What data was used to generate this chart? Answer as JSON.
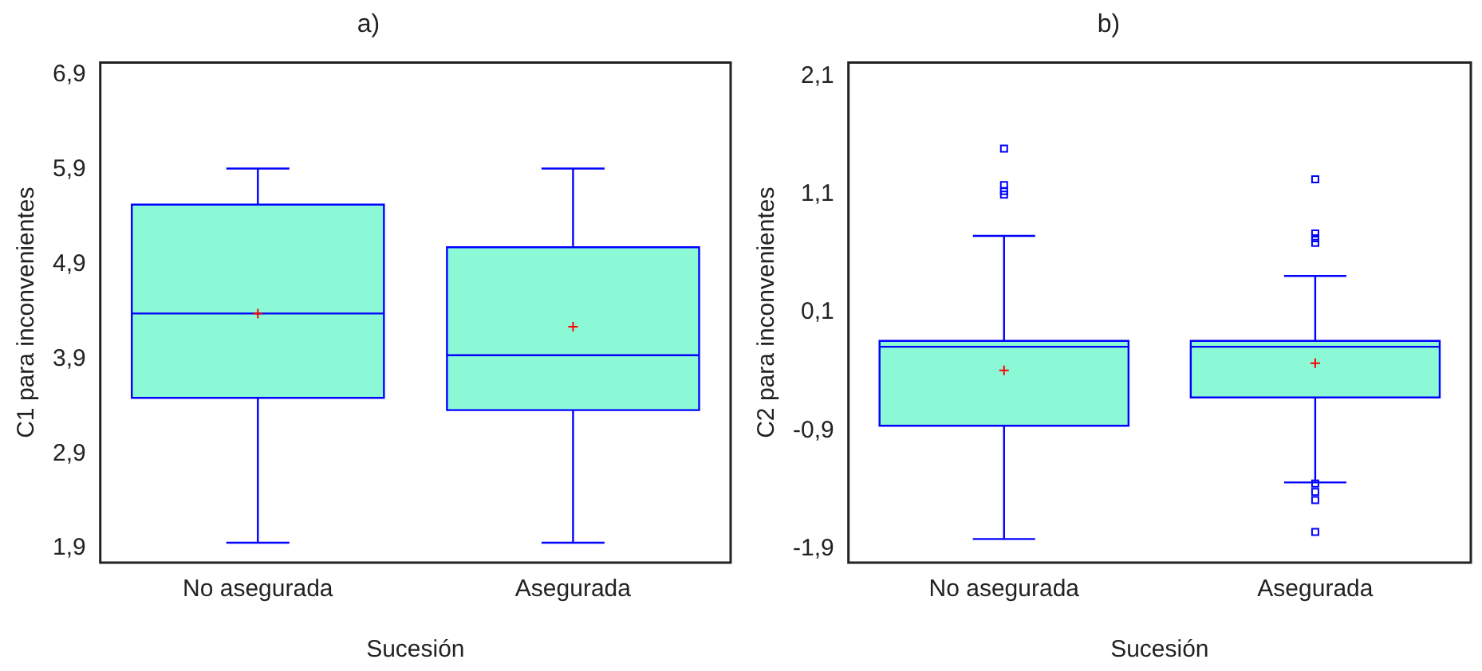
{
  "chart_data": [
    {
      "type": "box",
      "title": "a)",
      "xlabel": "Sucesión",
      "ylabel": "C1 para inconvenientes",
      "categories": [
        "No asegurada",
        "Asegurada"
      ],
      "color": "#8cf9d6",
      "ylim": [
        1.75,
        7.03
      ],
      "yticks": [
        {
          "value": 1.9,
          "label": "1,9"
        },
        {
          "value": 2.9,
          "label": "2,9"
        },
        {
          "value": 3.9,
          "label": "3,9"
        },
        {
          "value": 4.9,
          "label": "4,9"
        },
        {
          "value": 5.9,
          "label": "5,9"
        },
        {
          "value": 6.9,
          "label": "6,9"
        }
      ],
      "grid": false,
      "boxes": [
        {
          "low": 1.96,
          "q1": 3.49,
          "median": 4.38,
          "q3": 5.53,
          "high": 5.91,
          "mean": 4.38
        },
        {
          "low": 1.96,
          "q1": 3.36,
          "median": 3.94,
          "q3": 5.08,
          "high": 5.91,
          "mean": 4.24
        }
      ]
    },
    {
      "type": "box",
      "title": "b)",
      "xlabel": "Sucesión",
      "ylabel": "C2 para inconvenientes",
      "categories": [
        "No asegurada",
        "Asegurada"
      ],
      "color": "#8cf9d6",
      "ylim": [
        -2.02,
        2.22
      ],
      "yticks": [
        {
          "value": -1.9,
          "label": "-1,9"
        },
        {
          "value": -0.9,
          "label": "-0,9"
        },
        {
          "value": 0.1,
          "label": "0,1"
        },
        {
          "value": 1.1,
          "label": "1,1"
        },
        {
          "value": 2.1,
          "label": "2,1"
        }
      ],
      "grid": false,
      "boxes": [
        {
          "low": -1.82,
          "q1": -0.86,
          "median": -0.19,
          "q3": -0.14,
          "high": 0.75,
          "mean": -0.39,
          "outliers": [
            1.49,
            1.18,
            1.13,
            1.1
          ]
        },
        {
          "low": -1.34,
          "q1": -0.62,
          "median": -0.19,
          "q3": -0.14,
          "high": 0.41,
          "mean": -0.33,
          "outliers": [
            1.23,
            0.77,
            0.73,
            0.69,
            -1.35,
            -1.42,
            -1.49,
            -1.76
          ]
        }
      ]
    }
  ]
}
